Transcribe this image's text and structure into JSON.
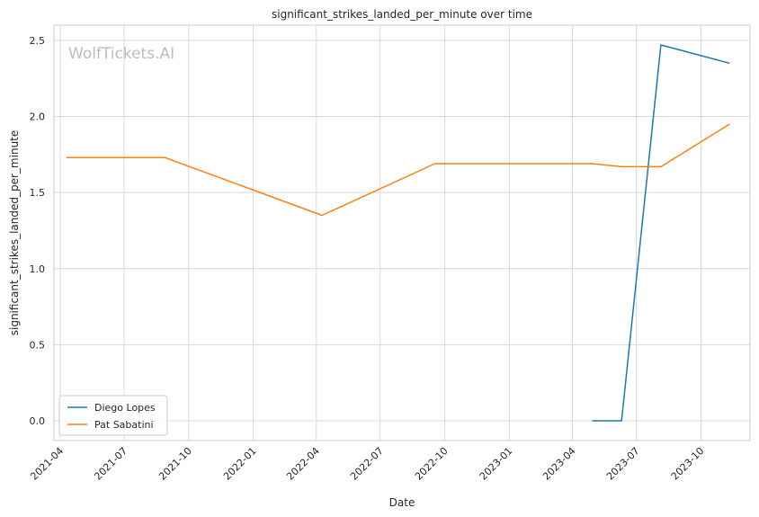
{
  "chart_data": {
    "type": "line",
    "title": "significant_strikes_landed_per_minute over time",
    "xlabel": "Date",
    "ylabel": "significant_strikes_landed_per_minute",
    "watermark": "WolfTickets.AI",
    "x_ticks": [
      "2021-04",
      "2021-07",
      "2021-10",
      "2022-01",
      "2022-04",
      "2022-07",
      "2022-10",
      "2023-01",
      "2023-04",
      "2023-07",
      "2023-10"
    ],
    "y_ticks": [
      "0.0",
      "0.5",
      "1.0",
      "1.5",
      "2.0",
      "2.5"
    ],
    "xlim": [
      "2021-03-23",
      "2023-12-10"
    ],
    "ylim": [
      -0.13,
      2.6
    ],
    "grid": true,
    "legend_position": "lower-left",
    "series": [
      {
        "name": "Diego Lopes",
        "color": "#1f77b4",
        "points": [
          {
            "x": "2023-04-29",
            "y": 0.0
          },
          {
            "x": "2023-06-10",
            "y": 0.0
          },
          {
            "x": "2023-08-05",
            "y": 2.47
          },
          {
            "x": "2023-11-11",
            "y": 2.35
          }
        ]
      },
      {
        "name": "Pat Sabatini",
        "color": "#ff7f0e",
        "points": [
          {
            "x": "2021-04-10",
            "y": 1.73
          },
          {
            "x": "2021-08-28",
            "y": 1.73
          },
          {
            "x": "2022-04-09",
            "y": 1.35
          },
          {
            "x": "2022-09-17",
            "y": 1.69
          },
          {
            "x": "2023-04-29",
            "y": 1.69
          },
          {
            "x": "2023-06-10",
            "y": 1.67
          },
          {
            "x": "2023-08-05",
            "y": 1.67
          },
          {
            "x": "2023-11-11",
            "y": 1.95
          }
        ]
      }
    ]
  }
}
